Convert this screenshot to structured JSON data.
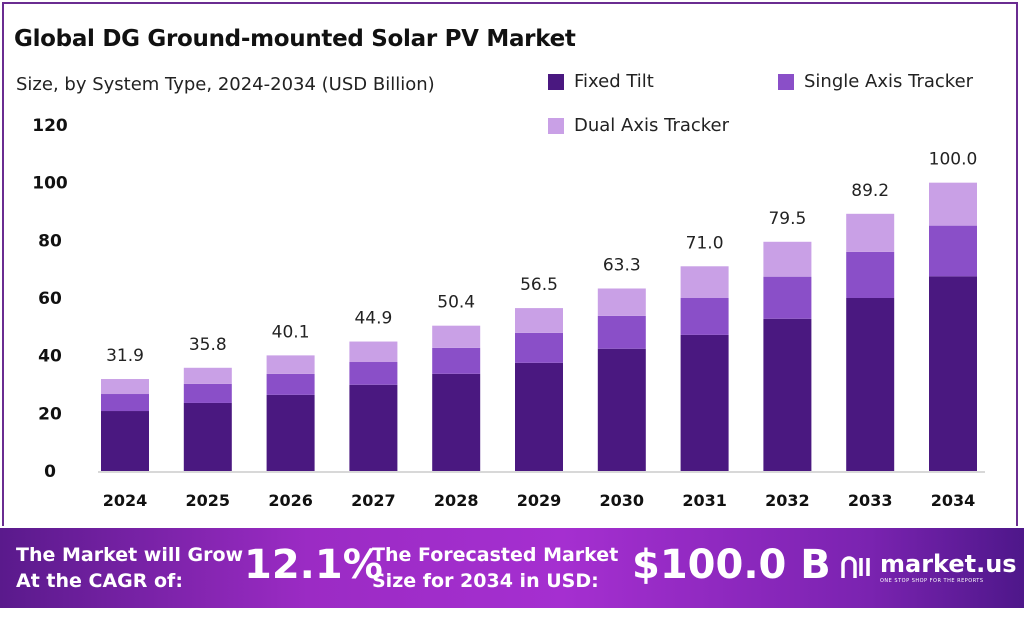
{
  "chart_data": {
    "type": "bar",
    "stacked": true,
    "title": "Global DG Ground-mounted Solar PV Market",
    "subtitle": "Size, by System Type, 2024-2034 (USD Billion)",
    "categories": [
      "2024",
      "2025",
      "2026",
      "2027",
      "2028",
      "2029",
      "2030",
      "2031",
      "2032",
      "2033",
      "2034"
    ],
    "series": [
      {
        "name": "Fixed Tilt",
        "color": "#4a1880",
        "values": [
          20.8,
          23.6,
          26.4,
          29.9,
          33.7,
          37.5,
          42.4,
          47.2,
          52.8,
          60.0,
          67.5
        ]
      },
      {
        "name": "Single Axis Tracker",
        "color": "#8a4fc8",
        "values": [
          5.9,
          6.6,
          7.3,
          7.9,
          9.0,
          10.4,
          11.4,
          12.8,
          14.6,
          16.0,
          17.6
        ]
      },
      {
        "name": "Dual Axis Tracker",
        "color": "#c9a0e6",
        "values": [
          5.2,
          5.6,
          6.4,
          7.1,
          7.7,
          8.6,
          9.5,
          11.0,
          12.1,
          13.2,
          14.9
        ]
      }
    ],
    "totals": [
      "31.9",
      "35.8",
      "40.1",
      "44.9",
      "50.4",
      "56.5",
      "63.3",
      "71.0",
      "79.5",
      "89.2",
      "100.0"
    ],
    "ylim": [
      0,
      120
    ],
    "yticks": [
      "0",
      "20",
      "40",
      "60",
      "80",
      "100",
      "120"
    ],
    "grid": false,
    "legend_position": "top-right"
  },
  "footer": {
    "cagr_label_1": "The Market will Grow",
    "cagr_label_2": "At the CAGR of:",
    "cagr_value": "12.1%",
    "forecast_label_1": "The Forecasted Market",
    "forecast_label_2": "Size for 2034 in USD:",
    "forecast_value": "$100.0 B",
    "logo_name": "market.us",
    "logo_tagline": "ONE STOP SHOP FOR THE REPORTS"
  }
}
